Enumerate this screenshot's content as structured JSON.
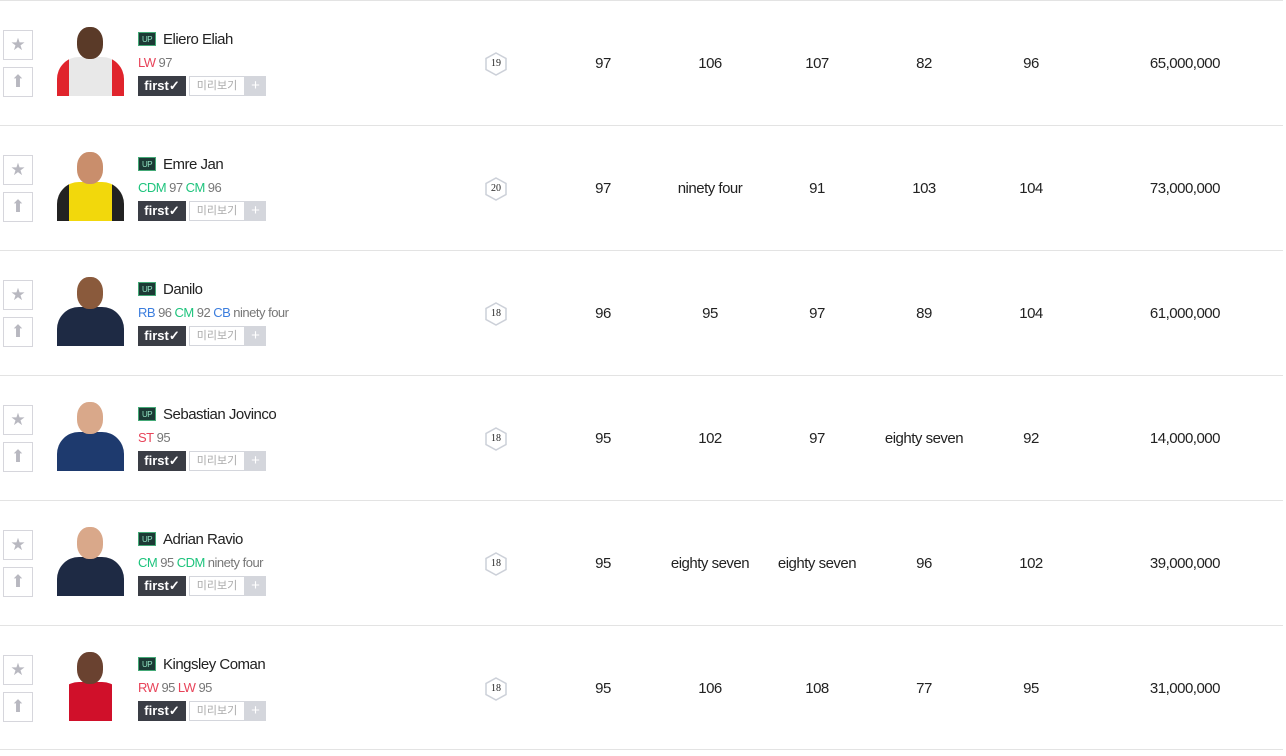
{
  "colors": {
    "red": "#e8445a",
    "green": "#1ec47d",
    "blue": "#3b7ddd"
  },
  "labels": {
    "first": "first✓",
    "preview": "미리보기",
    "plus": "+",
    "up": "UP",
    "star_icon": "★",
    "upgrade_icon": "⬆"
  },
  "players": [
    {
      "name": "Eliero Eliah",
      "positions": [
        {
          "pos": "LW",
          "ovr": "97",
          "color": "red"
        }
      ],
      "level": "19",
      "stats": [
        "97",
        "106",
        "107",
        "82",
        "96"
      ],
      "price": "65,000,000",
      "jersey": "#e8e8e8",
      "accent": "#e0242c",
      "skin": "#5a3a28"
    },
    {
      "name": "Emre Jan",
      "positions": [
        {
          "pos": "CDM",
          "ovr": "97",
          "color": "green"
        },
        {
          "pos": "CM",
          "ovr": "96",
          "color": "green"
        }
      ],
      "level": "20",
      "stats": [
        "97",
        "ninety four",
        "91",
        "103",
        "104"
      ],
      "price": "73,000,000",
      "jersey": "#f2d80c",
      "accent": "#222",
      "skin": "#c98e6c"
    },
    {
      "name": "Danilo",
      "positions": [
        {
          "pos": "RB",
          "ovr": "96",
          "color": "blue"
        },
        {
          "pos": "CM",
          "ovr": "92",
          "color": "green"
        },
        {
          "pos": "CB",
          "ovr": "ninety four",
          "color": "blue"
        }
      ],
      "level": "18",
      "stats": [
        "96",
        "95",
        "97",
        "89",
        "104"
      ],
      "price": "61,000,000",
      "jersey": "#1e2a44",
      "accent": "#1e2a44",
      "skin": "#8a5a3c"
    },
    {
      "name": "Sebastian Jovinco",
      "positions": [
        {
          "pos": "ST",
          "ovr": "95",
          "color": "red"
        }
      ],
      "level": "18",
      "stats": [
        "95",
        "102",
        "97",
        "eighty seven",
        "92"
      ],
      "price": "14,000,000",
      "jersey": "#1e3a6e",
      "accent": "#1e3a6e",
      "skin": "#d9a88a"
    },
    {
      "name": "Adrian Ravio",
      "positions": [
        {
          "pos": "CM",
          "ovr": "95",
          "color": "green"
        },
        {
          "pos": "CDM",
          "ovr": "ninety four",
          "color": "green"
        }
      ],
      "level": "18",
      "stats": [
        "95",
        "eighty seven",
        "eighty seven",
        "96",
        "102"
      ],
      "price": "39,000,000",
      "jersey": "#1e2a44",
      "accent": "#1e2a44",
      "skin": "#d9a88a"
    },
    {
      "name": "Kingsley Coman",
      "positions": [
        {
          "pos": "RW",
          "ovr": "95",
          "color": "red"
        },
        {
          "pos": "LW",
          "ovr": "95",
          "color": "red"
        }
      ],
      "level": "18",
      "stats": [
        "95",
        "106",
        "108",
        "77",
        "95"
      ],
      "price": "31,000,000",
      "jersey": "#d0102a",
      "accent": "#fff",
      "skin": "#6a4230"
    }
  ]
}
